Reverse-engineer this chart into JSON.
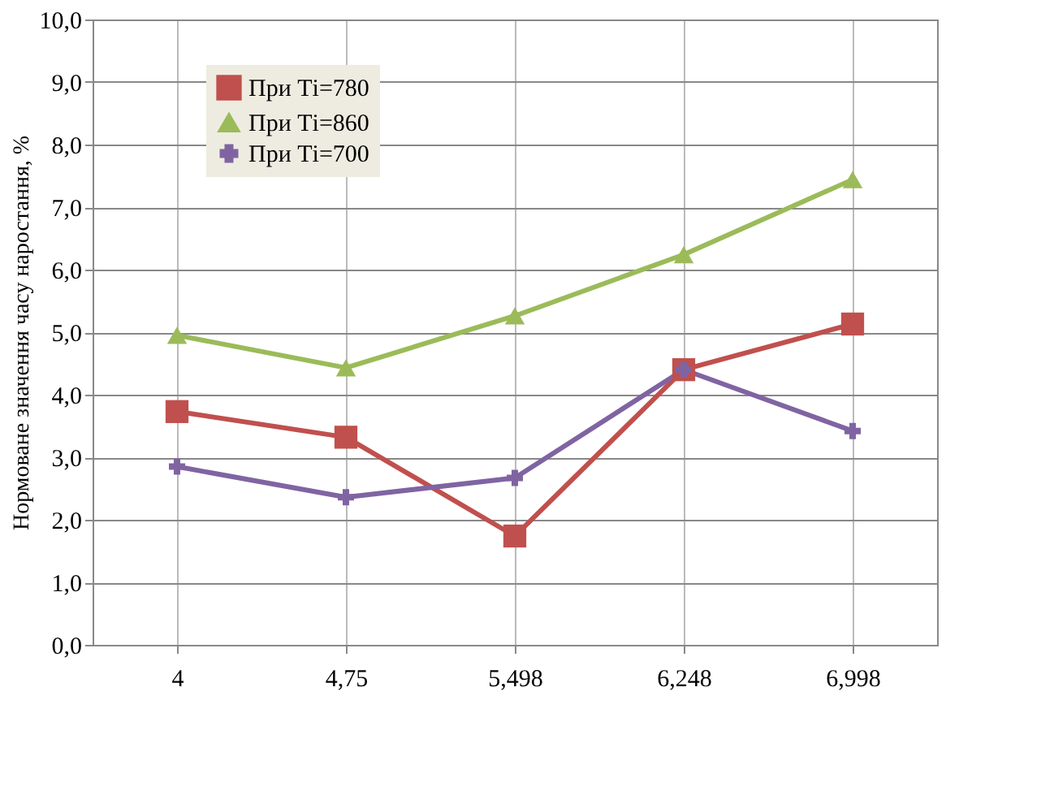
{
  "chart_data": {
    "type": "line",
    "ylabel": "Нормоване значення часу наростання, %",
    "categories": [
      "4",
      "4,75",
      "5,498",
      "6,248",
      "6,998"
    ],
    "series": [
      {
        "name": "При Ті=780",
        "color": "#c0504d",
        "marker": "square",
        "values": [
          3.73,
          3.32,
          1.74,
          4.4,
          5.13
        ]
      },
      {
        "name": "При Ті=860",
        "color": "#9bbb59",
        "marker": "triangle",
        "values": [
          4.95,
          4.43,
          5.26,
          6.24,
          7.44
        ]
      },
      {
        "name": "При Ті=700",
        "color": "#8064a2",
        "marker": "cross",
        "values": [
          2.85,
          2.36,
          2.67,
          4.4,
          3.42
        ]
      }
    ],
    "ylim": [
      0,
      10
    ],
    "yticks": [
      {
        "value": 0,
        "label": "0,0"
      },
      {
        "value": 1,
        "label": "1,0"
      },
      {
        "value": 2,
        "label": "2,0"
      },
      {
        "value": 3,
        "label": "3,0"
      },
      {
        "value": 4,
        "label": "4,0"
      },
      {
        "value": 5,
        "label": "5,0"
      },
      {
        "value": 6,
        "label": "6,0"
      },
      {
        "value": 7,
        "label": "7,0"
      },
      {
        "value": 8,
        "label": "8,0"
      },
      {
        "value": 9,
        "label": "9,0"
      },
      {
        "value": 10,
        "label": "10,0"
      }
    ],
    "grid": true,
    "legend": "top left",
    "line_style": "solid"
  }
}
